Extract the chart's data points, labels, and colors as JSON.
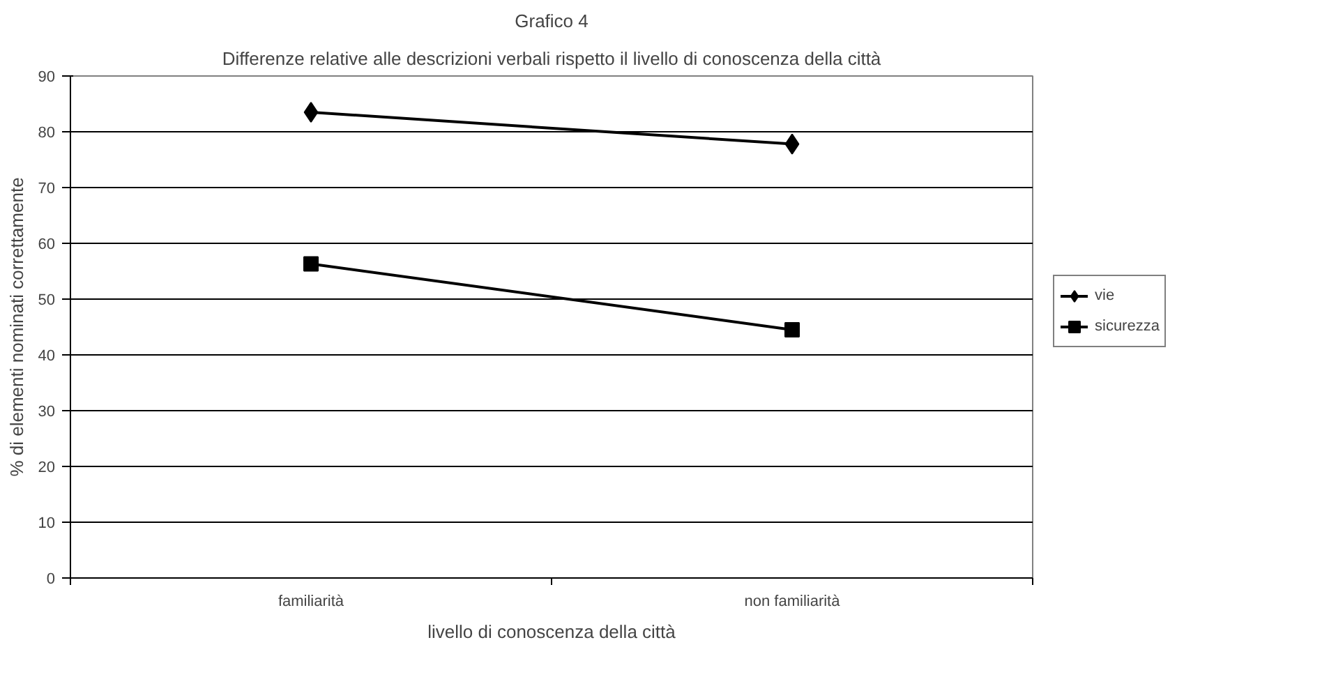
{
  "chart_data": {
    "type": "line",
    "title": "Grafico 4",
    "subtitle": "Differenze relative alle descrizioni verbali rispetto il livello di conoscenza della città",
    "xlabel": "livello di conoscenza della città",
    "ylabel": "% di elementi nominati correttamente",
    "categories": [
      "familiarità",
      "non familiarità"
    ],
    "ylim": [
      0,
      90
    ],
    "yticks": [
      0,
      10,
      20,
      30,
      40,
      50,
      60,
      70,
      80,
      90
    ],
    "grid": "y",
    "legend": "right",
    "line_style": "solid",
    "series": [
      {
        "name": "vie",
        "color": "#000000",
        "marker": "diamond",
        "values": [
          83.5,
          77.8
        ]
      },
      {
        "name": "sicurezza",
        "color": "#000000",
        "marker": "square",
        "values": [
          56.3,
          44.5
        ]
      }
    ]
  }
}
